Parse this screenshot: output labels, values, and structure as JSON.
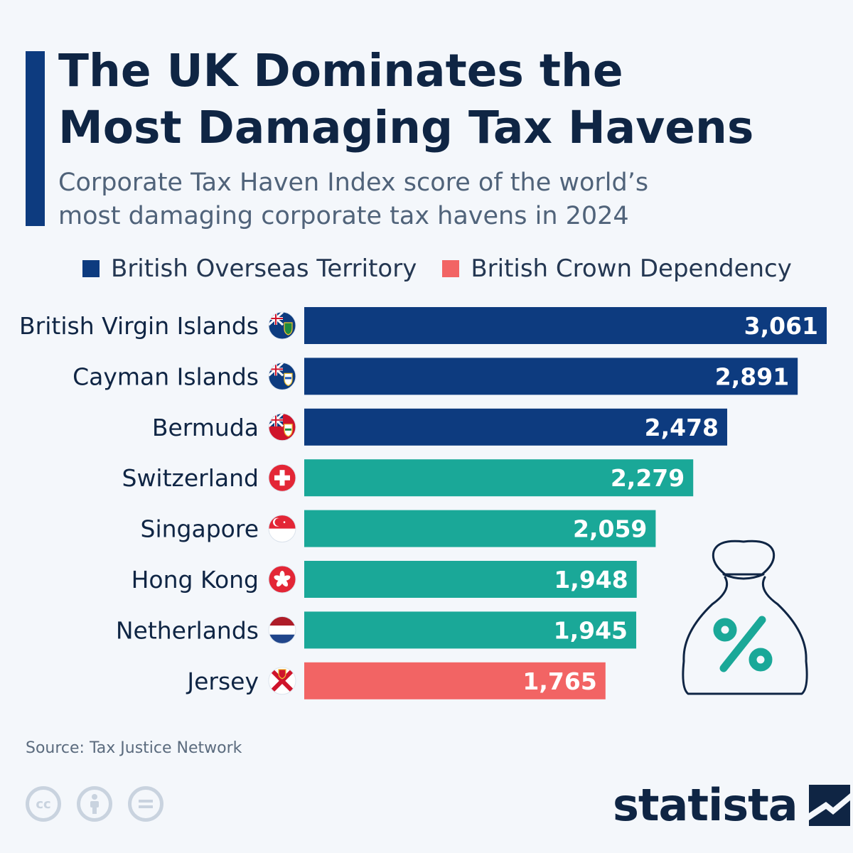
{
  "header": {
    "title_line1": "The UK Dominates the",
    "title_line2": "Most Damaging Tax Havens",
    "subtitle_line1": "Corporate Tax Haven Index score of the world’s",
    "subtitle_line2": "most damaging corporate tax havens in 2024"
  },
  "legend": {
    "items": [
      {
        "label": "British Overseas Territory",
        "color": "#0d3b7f"
      },
      {
        "label": "British Crown Dependency",
        "color": "#f26464"
      }
    ]
  },
  "colors": {
    "overseas": "#0d3b7f",
    "crown": "#f26464",
    "other": "#1aa898"
  },
  "chart_data": {
    "type": "bar",
    "orientation": "horizontal",
    "title": "The UK Dominates the Most Damaging Tax Havens",
    "subtitle": "Corporate Tax Haven Index score of the world’s most damaging corporate tax havens in 2024",
    "categories": [
      "British Virgin Islands",
      "Cayman Islands",
      "Bermuda",
      "Switzerland",
      "Singapore",
      "Hong Kong",
      "Netherlands",
      "Jersey"
    ],
    "values": [
      3061,
      2891,
      2478,
      2279,
      2059,
      1948,
      1945,
      1765
    ],
    "value_labels": [
      "3,061",
      "2,891",
      "2,478",
      "2,279",
      "2,059",
      "1,948",
      "1,945",
      "1,765"
    ],
    "groups": [
      "overseas",
      "overseas",
      "overseas",
      "other",
      "other",
      "other",
      "other",
      "crown"
    ],
    "flag_icons": [
      "bvi-flag-icon",
      "cayman-flag-icon",
      "bermuda-flag-icon",
      "swiss-flag-icon",
      "singapore-flag-icon",
      "hongkong-flag-icon",
      "netherlands-flag-icon",
      "jersey-flag-icon"
    ],
    "xlim": [
      0,
      3061
    ],
    "xlabel": "",
    "ylabel": "",
    "grid": false
  },
  "illustration": {
    "icon": "money-bag-percent-icon",
    "symbol": "%"
  },
  "footer": {
    "source": "Source: Tax Justice Network",
    "license_icons": [
      "cc-icon",
      "attribution-icon",
      "no-derivatives-icon"
    ],
    "brand": "statista"
  }
}
